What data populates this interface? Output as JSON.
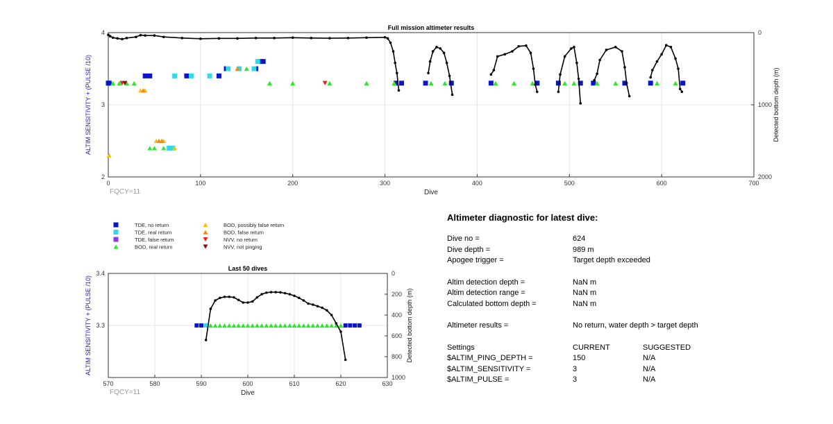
{
  "chart_data": [
    {
      "type": "scatter",
      "title": "Full mission altimeter results",
      "xlabel": "Dive",
      "ylabel": "ALTIM SENSITIVITY + (PULSE /10)",
      "y2label": "Detected bottom depth (m)",
      "xlim": [
        0,
        700
      ],
      "ylim": [
        2,
        4
      ],
      "y2lim": [
        2000,
        0
      ],
      "xticks": [
        "0",
        "100",
        "200",
        "300",
        "400",
        "500",
        "600",
        "700"
      ],
      "yticks": [
        "2",
        "3",
        "4"
      ],
      "y2ticks": [
        "0",
        "1000",
        "2000"
      ],
      "annotation": "FQCY=11",
      "grid": true,
      "series": [
        {
          "name": "TDE, no return",
          "color": "#0a16c8",
          "marker": "square",
          "points": [
            [
              0,
              3.3
            ],
            [
              1,
              3.3
            ],
            [
              40,
              3.4
            ],
            [
              45,
              3.4
            ],
            [
              85,
              3.4
            ],
            [
              120,
              3.4
            ],
            [
              128,
              3.5
            ],
            [
              160,
              3.5
            ],
            [
              165,
              3.6
            ],
            [
              168,
              3.6
            ],
            [
              312,
              3.3
            ],
            [
              318,
              3.3
            ],
            [
              344,
              3.3
            ],
            [
              372,
              3.3
            ],
            [
              415,
              3.3
            ],
            [
              465,
              3.3
            ],
            [
              488,
              3.3
            ],
            [
              512,
              3.3
            ],
            [
              526,
              3.3
            ],
            [
              560,
              3.3
            ],
            [
              588,
              3.3
            ],
            [
              623,
              3.3
            ]
          ]
        },
        {
          "name": "TDE, real return",
          "color": "#33d8e8",
          "marker": "square",
          "points": [
            [
              72,
              3.4
            ],
            [
              90,
              3.4
            ],
            [
              110,
              3.4
            ],
            [
              130,
              3.5
            ],
            [
              142,
              3.5
            ],
            [
              158,
              3.5
            ],
            [
              162,
              3.6
            ],
            [
              70,
              2.4
            ],
            [
              66,
              2.4
            ]
          ]
        },
        {
          "name": "BOD, real return",
          "color": "#2ee82e",
          "marker": "triangle",
          "points": [
            [
              5,
              3.3
            ],
            [
              12,
              3.3
            ],
            [
              20,
              3.3
            ],
            [
              28,
              3.3
            ],
            [
              45,
              2.4
            ],
            [
              50,
              2.4
            ],
            [
              60,
              2.4
            ],
            [
              150,
              3.5
            ],
            [
              175,
              3.3
            ],
            [
              200,
              3.3
            ],
            [
              240,
              3.3
            ],
            [
              280,
              3.3
            ],
            [
              310,
              3.3
            ],
            [
              350,
              3.3
            ],
            [
              365,
              3.3
            ],
            [
              420,
              3.3
            ],
            [
              440,
              3.3
            ],
            [
              460,
              3.3
            ],
            [
              495,
              3.3
            ],
            [
              505,
              3.3
            ],
            [
              530,
              3.3
            ],
            [
              550,
              3.3
            ],
            [
              595,
              3.3
            ],
            [
              615,
              3.3
            ]
          ]
        },
        {
          "name": "BOD, possibly false return",
          "color": "#f2c410",
          "marker": "triangle",
          "points": [
            [
              1,
              2.3
            ],
            [
              35,
              3.2
            ],
            [
              40,
              3.2
            ],
            [
              52,
              2.5
            ],
            [
              60,
              2.5
            ],
            [
              72,
              2.4
            ]
          ]
        },
        {
          "name": "BOD, false return",
          "color": "#ef8a12",
          "marker": "triangle",
          "points": [
            [
              38,
              3.2
            ],
            [
              55,
              2.5
            ],
            [
              58,
              2.5
            ],
            [
              140,
              3.5
            ]
          ]
        },
        {
          "name": "NVV, no return",
          "color": "#e02a16",
          "marker": "triangle-down",
          "points": [
            [
              15,
              3.3
            ],
            [
              235,
              3.3
            ]
          ]
        },
        {
          "name": "NVV, not pinging",
          "color": "#8b0f0f",
          "marker": "triangle-down",
          "points": [
            [
              18,
              3.3
            ]
          ]
        }
      ],
      "depth_profile": {
        "color": "#000000",
        "segments": [
          [
            [
              0,
              30
            ],
            [
              2,
              50
            ],
            [
              5,
              70
            ],
            [
              10,
              80
            ],
            [
              15,
              90
            ],
            [
              20,
              75
            ],
            [
              30,
              60
            ],
            [
              35,
              35
            ],
            [
              40,
              40
            ],
            [
              50,
              40
            ],
            [
              60,
              60
            ],
            [
              80,
              75
            ],
            [
              100,
              85
            ],
            [
              120,
              80
            ],
            [
              140,
              80
            ],
            [
              160,
              75
            ],
            [
              180,
              75
            ],
            [
              200,
              70
            ],
            [
              220,
              75
            ],
            [
              240,
              78
            ],
            [
              260,
              75
            ],
            [
              280,
              70
            ],
            [
              300,
              65
            ],
            [
              303,
              80
            ],
            [
              306,
              140
            ],
            [
              309,
              260
            ],
            [
              311,
              420
            ],
            [
              313,
              560
            ],
            [
              315,
              800
            ]
          ],
          [
            [
              347,
              560
            ],
            [
              349,
              400
            ],
            [
              352,
              260
            ],
            [
              356,
              200
            ],
            [
              360,
              220
            ],
            [
              364,
              280
            ],
            [
              367,
              420
            ],
            [
              370,
              600
            ],
            [
              373,
              860
            ]
          ],
          [
            [
              415,
              580
            ],
            [
              418,
              520
            ],
            [
              422,
              330
            ],
            [
              430,
              300
            ],
            [
              438,
              260
            ],
            [
              445,
              190
            ],
            [
              453,
              180
            ],
            [
              458,
              280
            ],
            [
              461,
              500
            ],
            [
              463,
              720
            ],
            [
              465,
              820
            ]
          ],
          [
            [
              488,
              820
            ],
            [
              490,
              580
            ],
            [
              495,
              330
            ],
            [
              502,
              220
            ],
            [
              505,
              200
            ],
            [
              508,
              420
            ],
            [
              510,
              640
            ],
            [
              512,
              980
            ]
          ],
          [
            [
              527,
              660
            ],
            [
              530,
              570
            ],
            [
              533,
              380
            ],
            [
              540,
              240
            ],
            [
              550,
              200
            ],
            [
              557,
              260
            ],
            [
              560,
              480
            ],
            [
              562,
              700
            ],
            [
              565,
              880
            ]
          ],
          [
            [
              588,
              620
            ],
            [
              590,
              520
            ],
            [
              595,
              400
            ],
            [
              600,
              300
            ],
            [
              605,
              175
            ],
            [
              610,
              200
            ],
            [
              615,
              360
            ],
            [
              618,
              500
            ],
            [
              620,
              780
            ],
            [
              622,
              820
            ]
          ]
        ]
      }
    },
    {
      "type": "scatter",
      "title": "Last 50 dives",
      "xlabel": "Dive",
      "ylabel": "ALTIM SENSITIVITY + (PULSE /10)",
      "y2label": "Detected bottom depth (m)",
      "xlim": [
        570,
        630
      ],
      "ylim": [
        3.2,
        3.4
      ],
      "y2lim": [
        1000,
        0
      ],
      "xticks": [
        "570",
        "580",
        "590",
        "600",
        "610",
        "620",
        "630"
      ],
      "yticks": [
        "3.3",
        "3.4"
      ],
      "y2ticks": [
        "0",
        "200",
        "400",
        "600",
        "800",
        "1000"
      ],
      "annotation": "FQCY=11",
      "grid": true,
      "tde_no_return_dives": [
        589,
        590,
        621,
        622,
        623,
        624
      ],
      "tde_real_return_dives": [
        591
      ],
      "bod_real_return_dives": [
        592,
        593,
        594,
        595,
        596,
        597,
        598,
        599,
        600,
        601,
        602,
        603,
        604,
        605,
        606,
        607,
        608,
        609,
        610,
        611,
        612,
        613,
        614,
        615,
        616,
        617,
        618,
        619,
        620
      ],
      "depth_profile": {
        "color": "#000000",
        "points": [
          [
            591,
            640
          ],
          [
            592,
            340
          ],
          [
            593,
            260
          ],
          [
            594,
            235
          ],
          [
            595,
            225
          ],
          [
            596,
            225
          ],
          [
            597,
            230
          ],
          [
            598,
            255
          ],
          [
            599,
            280
          ],
          [
            600,
            280
          ],
          [
            601,
            270
          ],
          [
            602,
            230
          ],
          [
            603,
            200
          ],
          [
            604,
            185
          ],
          [
            605,
            180
          ],
          [
            606,
            180
          ],
          [
            607,
            182
          ],
          [
            608,
            190
          ],
          [
            609,
            200
          ],
          [
            610,
            215
          ],
          [
            611,
            235
          ],
          [
            612,
            260
          ],
          [
            613,
            290
          ],
          [
            614,
            300
          ],
          [
            615,
            315
          ],
          [
            616,
            330
          ],
          [
            617,
            355
          ],
          [
            618,
            400
          ],
          [
            619,
            480
          ],
          [
            620,
            560
          ],
          [
            621,
            830
          ]
        ]
      }
    }
  ],
  "legend": {
    "items": [
      {
        "label": "TDE, no return",
        "color": "#0a16c8",
        "marker": "square"
      },
      {
        "label": "TDE, real return",
        "color": "#33d8e8",
        "marker": "square"
      },
      {
        "label": "TDE, false return",
        "color": "#8a3de0",
        "marker": "square"
      },
      {
        "label": "BOD, real return",
        "color": "#2ee82e",
        "marker": "triangle"
      },
      {
        "label": "BOD, possibly false return",
        "color": "#f2c410",
        "marker": "triangle"
      },
      {
        "label": "BOD, false return",
        "color": "#ef8a12",
        "marker": "triangle"
      },
      {
        "label": "NVV, no return",
        "color": "#e02a16",
        "marker": "triangle-down"
      },
      {
        "label": "NVV, not pinging",
        "color": "#8b0f0f",
        "marker": "triangle-down"
      }
    ]
  },
  "diagnostic": {
    "heading": "Altimeter diagnostic for latest dive:",
    "dive_no_label": "Dive no =",
    "dive_no_value": "624",
    "dive_depth_label": "Dive depth =",
    "dive_depth_value": "989 m",
    "apogee_label": "Apogee trigger =",
    "apogee_value": "Target depth exceeded",
    "detection_depth_label": "Altim detection depth =",
    "detection_depth_value": "NaN m",
    "detection_range_label": "Altim detection range =",
    "detection_range_value": "NaN m",
    "bottom_depth_label": "Calculated bottom depth =",
    "bottom_depth_value": "NaN m",
    "results_label": "Altimeter results =",
    "results_value": "No return, water depth > target depth",
    "settings_label": "Settings",
    "current_header": "CURRENT",
    "suggested_header": "SUGGESTED",
    "ping_depth_label": "$ALTIM_PING_DEPTH =",
    "ping_depth_current": "150",
    "ping_depth_suggested": "N/A",
    "sensitivity_label": "$ALTIM_SENSITIVITY =",
    "sensitivity_current": "3",
    "sensitivity_suggested": "N/A",
    "pulse_label": "$ALTIM_PULSE =",
    "pulse_current": "3",
    "pulse_suggested": "N/A"
  }
}
